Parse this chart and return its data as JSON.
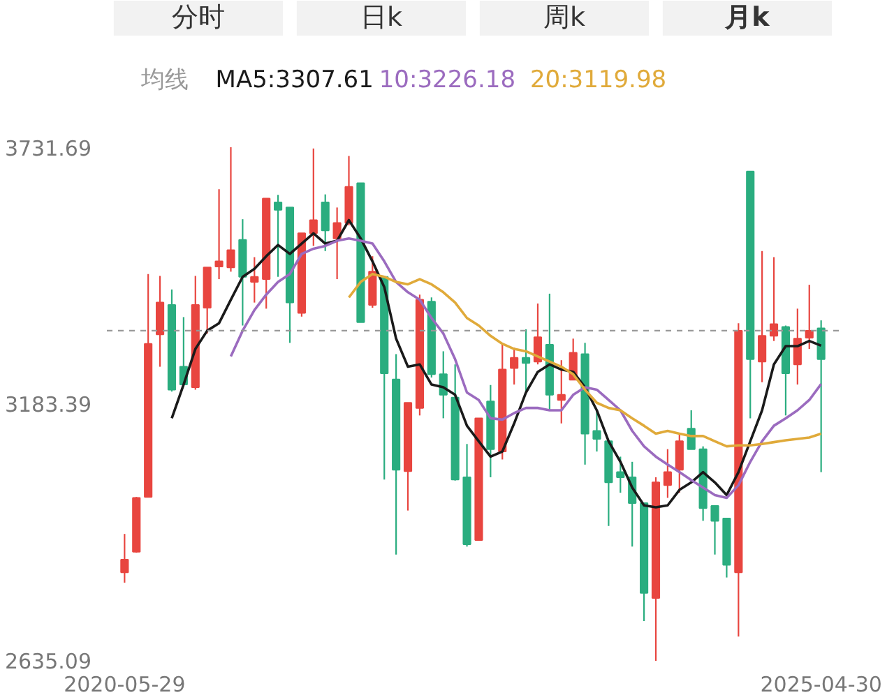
{
  "chart_data": {
    "type": "candlestick",
    "annotations": [
      "分时",
      "日k",
      "周k",
      "月k"
    ],
    "legend_title": "均线",
    "legend": "top",
    "categories": [
      "2020-05-29",
      null,
      null,
      null,
      null,
      null,
      null,
      null,
      null,
      null,
      null,
      null,
      null,
      null,
      null,
      null,
      null,
      null,
      null,
      null,
      null,
      null,
      null,
      null,
      null,
      null,
      null,
      null,
      null,
      null,
      null,
      null,
      null,
      null,
      null,
      null,
      null,
      null,
      null,
      null,
      null,
      null,
      null,
      null,
      null,
      null,
      null,
      null,
      null,
      null,
      null,
      null,
      null,
      null,
      null,
      null,
      null,
      null,
      null,
      "2025-04-30"
    ],
    "colors": [
      "#e8453f",
      "#e8453f",
      "#e8453f",
      "#e8453f",
      "#2aad7f",
      "#2aad7f",
      "#e8453f",
      "#e8453f",
      "#e8453f",
      "#e8453f",
      "#2aad7f",
      "#e8453f",
      "#e8453f",
      "#2aad7f",
      "#2aad7f",
      "#e8453f",
      "#e8453f",
      "#2aad7f",
      "#e8453f",
      "#e8453f",
      "#2aad7f",
      "#e8453f",
      "#2aad7f",
      "#2aad7f",
      "#e8453f",
      "#e8453f",
      "#2aad7f",
      "#2aad7f",
      "#2aad7f",
      "#2aad7f",
      "#e8453f",
      "#2aad7f",
      "#e8453f",
      "#e8453f",
      "#2aad7f",
      "#e8453f",
      "#2aad7f",
      "#e8453f",
      "#e8453f",
      "#2aad7f",
      "#2aad7f",
      "#2aad7f",
      "#2aad7f",
      "#2aad7f",
      "#2aad7f",
      "#e8453f",
      "#e8453f",
      "#e8453f",
      "#2aad7f",
      "#2aad7f",
      "#2aad7f",
      "#2aad7f",
      "#e8453f",
      "#2aad7f",
      "#e8453f",
      "#e8453f",
      "#2aad7f",
      "#e8453f",
      "#e8453f",
      "#2aad7f"
    ],
    "ohlc": [
      [
        2824,
        2906,
        2802,
        2851
      ],
      [
        2868,
        2985,
        2866,
        2983
      ],
      [
        2985,
        3461,
        2985,
        3312
      ],
      [
        3332,
        3457,
        3263,
        3400
      ],
      [
        3395,
        3428,
        3210,
        3214
      ],
      [
        3263,
        3369,
        3220,
        3225
      ],
      [
        3219,
        3457,
        3214,
        3395
      ],
      [
        3389,
        3475,
        3334,
        3475
      ],
      [
        3477,
        3642,
        3450,
        3488
      ],
      [
        3475,
        3731.69,
        3466,
        3512
      ],
      [
        3534,
        3578,
        3351,
        3455
      ],
      [
        3444,
        3497,
        3400,
        3455
      ],
      [
        3450,
        3622,
        3387,
        3622
      ],
      [
        3614,
        3630,
        3455,
        3598
      ],
      [
        3603,
        3603,
        3314,
        3400
      ],
      [
        3378,
        3548,
        3370,
        3548
      ],
      [
        3548,
        3729,
        3521,
        3576
      ],
      [
        3614,
        3631,
        3510,
        3554
      ],
      [
        3537,
        3603,
        3450,
        3570
      ],
      [
        3570,
        3713,
        3565,
        3647
      ],
      [
        3655,
        3655,
        3358,
        3358
      ],
      [
        3395,
        3499,
        3389,
        3466
      ],
      [
        3455,
        3455,
        3022,
        3249
      ],
      [
        3236,
        3290,
        2862,
        3043
      ],
      [
        3040,
        3186,
        2956,
        3186
      ],
      [
        3175,
        3417,
        3159,
        3406
      ],
      [
        3402,
        3411,
        3240,
        3247
      ],
      [
        3247,
        3296,
        3153,
        3203
      ],
      [
        3197,
        3268,
        3020,
        3022
      ],
      [
        3027,
        3098,
        2879,
        2884
      ],
      [
        2893,
        3153,
        2893,
        3153
      ],
      [
        3189,
        3224,
        3027,
        3087
      ],
      [
        3082,
        3312,
        3065,
        3257
      ],
      [
        3260,
        3304,
        3225,
        3282
      ],
      [
        3282,
        3343,
        3208,
        3271
      ],
      [
        3274,
        3398,
        3268,
        3326
      ],
      [
        3310,
        3419,
        3170,
        3203
      ],
      [
        3192,
        3277,
        3142,
        3203
      ],
      [
        3235,
        3323,
        3235,
        3293
      ],
      [
        3290,
        3314,
        3054,
        3120
      ],
      [
        3126,
        3170,
        3082,
        3109
      ],
      [
        3104,
        3104,
        2923,
        3016
      ],
      [
        3038,
        3071,
        2994,
        3027
      ],
      [
        3027,
        3060,
        2879,
        2972
      ],
      [
        2972,
        2972,
        2720,
        2780
      ],
      [
        2769,
        3027,
        2635.09,
        3016
      ],
      [
        3010,
        3087,
        2983,
        3038
      ],
      [
        3043,
        3120,
        2994,
        3104
      ],
      [
        3131,
        3170,
        3087,
        3087
      ],
      [
        3087,
        3093,
        2934,
        2961
      ],
      [
        2966,
        2966,
        2862,
        2934
      ],
      [
        2939,
        2939,
        2813,
        2840
      ],
      [
        2824,
        3356,
        2687,
        3340
      ],
      [
        3680,
        3680,
        3153,
        3279
      ],
      [
        3274,
        3510,
        3230,
        3329
      ],
      [
        3329,
        3497,
        3318,
        3354
      ],
      [
        3348,
        3351,
        3159,
        3249
      ],
      [
        3268,
        3387,
        3225,
        3323
      ],
      [
        3325,
        3438,
        3301,
        3340
      ],
      [
        3345,
        3362,
        3038,
        3279
      ]
    ],
    "series": [
      {
        "type": "line",
        "name": "MA5:3307.61",
        "color": "#1a1a1a",
        "values": [
          null,
          null,
          null,
          null,
          3153,
          3225,
          3301,
          3340,
          3356,
          3406,
          3455,
          3472,
          3499,
          3523,
          3504,
          3526,
          3548,
          3526,
          3532,
          3576,
          3537,
          3488,
          3433,
          3323,
          3263,
          3268,
          3225,
          3219,
          3203,
          3137,
          3104,
          3071,
          3082,
          3142,
          3208,
          3252,
          3268,
          3257,
          3252,
          3219,
          3170,
          3104,
          3060,
          3005,
          2967,
          2963,
          2967,
          3000,
          3016,
          3038,
          3016,
          2989,
          3038,
          3104,
          3170,
          3268,
          3307,
          3307,
          3318,
          3308
        ]
      },
      {
        "type": "line",
        "name": "10:3226.18",
        "color": "#9b6bbf",
        "values": [
          null,
          null,
          null,
          null,
          null,
          null,
          null,
          null,
          null,
          3285,
          3340,
          3384,
          3417,
          3444,
          3461,
          3504,
          3515,
          3521,
          3532,
          3537,
          3532,
          3526,
          3488,
          3444,
          3422,
          3406,
          3367,
          3334,
          3279,
          3208,
          3192,
          3153,
          3150,
          3164,
          3175,
          3175,
          3170,
          3170,
          3203,
          3219,
          3214,
          3192,
          3170,
          3126,
          3093,
          3071,
          3054,
          3038,
          3021,
          3005,
          2989,
          2983,
          3010,
          3060,
          3104,
          3137,
          3153,
          3170,
          3192,
          3226
        ]
      },
      {
        "type": "line",
        "name": "20:3119.98",
        "color": "#e0aa3a",
        "values": [
          null,
          null,
          null,
          null,
          null,
          null,
          null,
          null,
          null,
          null,
          null,
          null,
          null,
          null,
          null,
          null,
          null,
          null,
          null,
          3411,
          3444,
          3461,
          3455,
          3444,
          3439,
          3450,
          3439,
          3422,
          3400,
          3367,
          3351,
          3329,
          3312,
          3301,
          3296,
          3285,
          3274,
          3263,
          3247,
          3214,
          3186,
          3175,
          3170,
          3153,
          3137,
          3120,
          3126,
          3120,
          3115,
          3115,
          3104,
          3093,
          3095,
          3095,
          3098,
          3102,
          3106,
          3109,
          3112,
          3120
        ]
      }
    ],
    "ylim": [
      2635.09,
      3731.69
    ],
    "yticks": [
      2635.09,
      3183.39,
      3731.69
    ],
    "ref_lines": [
      {
        "axis": "y",
        "value": 3340,
        "line_style": "dashed",
        "color": "#999999"
      }
    ]
  }
}
